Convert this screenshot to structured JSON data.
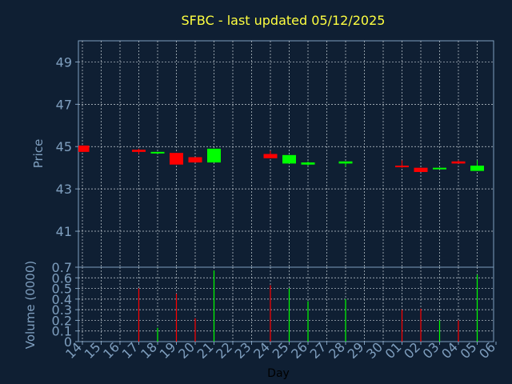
{
  "chart_data": {
    "type": "candlestick",
    "title": "SFBC - last updated 05/12/2025",
    "price_panel": {
      "ylabel": "Price",
      "ylim": [
        39.3,
        50.0
      ],
      "yticks": [
        41,
        43,
        45,
        47,
        49
      ]
    },
    "volume_panel": {
      "ylabel": "Volume (0000)",
      "ylim": [
        0,
        0.7
      ],
      "yticks": [
        0,
        0.1,
        0.2,
        0.3,
        0.4,
        0.5,
        0.6,
        0.7
      ]
    },
    "xlabel": "Day",
    "x_ticks": [
      "14",
      "15",
      "16",
      "17",
      "18",
      "19",
      "20",
      "21",
      "22",
      "23",
      "24",
      "25",
      "26",
      "27",
      "28",
      "29",
      "30",
      "01",
      "02",
      "03",
      "04",
      "05",
      "06"
    ],
    "candles": [
      {
        "day": "14",
        "open": 45.05,
        "high": 45.05,
        "close": 44.75,
        "low": 44.75,
        "volume": 0.0
      },
      {
        "day": "17",
        "open": 44.85,
        "high": 44.9,
        "close": 44.75,
        "low": 44.65,
        "volume": 0.5
      },
      {
        "day": "18",
        "open": 44.7,
        "high": 44.75,
        "close": 44.75,
        "low": 44.65,
        "volume": 0.13
      },
      {
        "day": "19",
        "open": 44.7,
        "high": 44.7,
        "close": 44.15,
        "low": 44.15,
        "volume": 0.45
      },
      {
        "day": "20",
        "open": 44.5,
        "high": 44.5,
        "close": 44.25,
        "low": 44.25,
        "volume": 0.22
      },
      {
        "day": "21",
        "open": 44.25,
        "high": 44.9,
        "close": 44.9,
        "low": 44.25,
        "volume": 0.67
      },
      {
        "day": "24",
        "open": 44.65,
        "high": 44.8,
        "close": 44.45,
        "low": 44.45,
        "volume": 0.53
      },
      {
        "day": "25",
        "open": 44.2,
        "high": 44.6,
        "close": 44.6,
        "low": 44.2,
        "volume": 0.5
      },
      {
        "day": "26",
        "open": 44.15,
        "high": 44.3,
        "close": 44.25,
        "low": 44.1,
        "volume": 0.38
      },
      {
        "day": "28",
        "open": 44.2,
        "high": 44.3,
        "close": 44.3,
        "low": 44.05,
        "volume": 0.4
      },
      {
        "day": "01",
        "open": 44.1,
        "high": 44.35,
        "close": 44.05,
        "low": 44.0,
        "volume": 0.3
      },
      {
        "day": "02",
        "open": 44.0,
        "high": 44.0,
        "close": 43.8,
        "low": 43.8,
        "volume": 0.31
      },
      {
        "day": "03",
        "open": 43.95,
        "high": 44.0,
        "close": 44.0,
        "low": 43.95,
        "volume": 0.2
      },
      {
        "day": "04",
        "open": 44.3,
        "high": 44.35,
        "close": 44.2,
        "low": 44.2,
        "volume": 0.2
      },
      {
        "day": "05",
        "open": 43.85,
        "high": 44.35,
        "close": 44.1,
        "low": 43.85,
        "volume": 0.63
      }
    ],
    "colors": {
      "background": "#0f1f33",
      "title": "#ffff40",
      "axis_text": "#7f9fbf",
      "frame": "#7f9fbf",
      "grid": "#c8d0d8",
      "up": "#00ff00",
      "down": "#ff0000"
    },
    "grid": true
  }
}
